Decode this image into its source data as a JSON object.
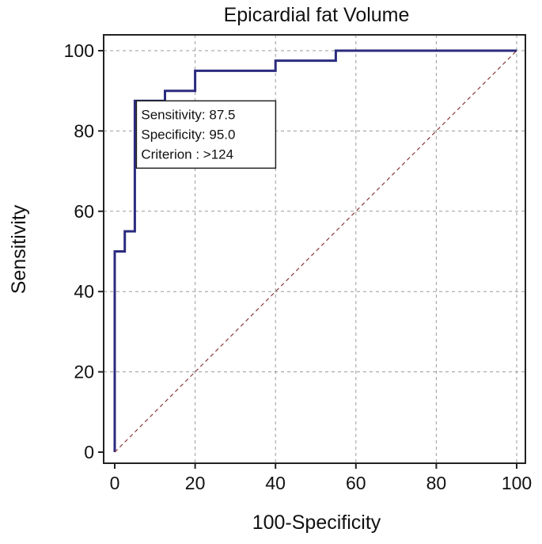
{
  "chart_data": {
    "type": "line",
    "title": "Epicardial fat Volume",
    "xlabel": "100-Specificity",
    "ylabel": "Sensitivity",
    "xlim": [
      0,
      100
    ],
    "ylim": [
      0,
      100
    ],
    "xticks": [
      0,
      20,
      40,
      60,
      80,
      100
    ],
    "yticks": [
      0,
      20,
      40,
      60,
      80,
      100
    ],
    "grid": true,
    "series": [
      {
        "style": "step",
        "color": "#2b2b7f",
        "x": [
          0,
          0,
          2.5,
          2.5,
          5,
          5,
          12.5,
          12.5,
          20,
          20,
          40,
          40,
          55,
          55,
          100
        ],
        "y": [
          0,
          50,
          50,
          55,
          55,
          87.5,
          87.5,
          90,
          90,
          95,
          95,
          97.5,
          97.5,
          100,
          100
        ]
      },
      {
        "style": "dashed",
        "color": "#8b3a3a",
        "x": [
          0,
          100
        ],
        "y": [
          0,
          100
        ]
      }
    ],
    "annotation": {
      "lines": [
        "Sensitivity: 87.5",
        "Specificity: 95.0",
        "Criterion : >124"
      ],
      "anchor_x": 5,
      "anchor_y": 87.5
    }
  }
}
